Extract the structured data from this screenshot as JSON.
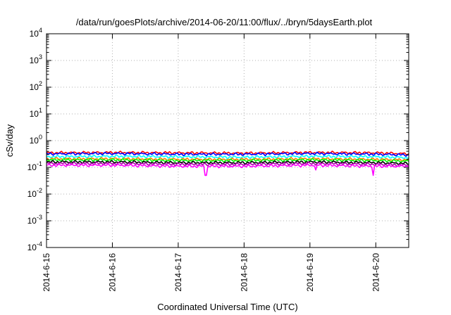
{
  "chart_data": {
    "type": "line",
    "title": "/data/run/goesPlots/archive/2014-06-20/11:00/flux/../bryn/5daysEarth.plot",
    "xlabel": "Coordinated Universal Time (UTC)",
    "ylabel": "cSv/day",
    "yscale": "log",
    "ylim": [
      0.0001,
      10000
    ],
    "y_ticks": [
      {
        "base": "10",
        "exp": "-4"
      },
      {
        "base": "10",
        "exp": "-3"
      },
      {
        "base": "10",
        "exp": "-2"
      },
      {
        "base": "10",
        "exp": "-1"
      },
      {
        "base": "10",
        "exp": "0"
      },
      {
        "base": "10",
        "exp": "1"
      },
      {
        "base": "10",
        "exp": "2"
      },
      {
        "base": "10",
        "exp": "3"
      },
      {
        "base": "10",
        "exp": "4"
      }
    ],
    "xlim": [
      "2014-06-15 00:00",
      "2014-06-20 12:00"
    ],
    "x_ticks": [
      "2014-6-15",
      "2014-6-16",
      "2014-6-17",
      "2014-6-18",
      "2014-6-19",
      "2014-6-20"
    ],
    "grid": true,
    "series": [
      {
        "color": "#ff0000",
        "base": 0.36,
        "x": [
          "2014-06-15 00:00",
          "2014-06-16 00:00",
          "2014-06-17 00:00",
          "2014-06-18 00:00",
          "2014-06-19 00:00",
          "2014-06-20 00:00",
          "2014-06-20 12:00"
        ],
        "y": [
          0.35,
          0.36,
          0.35,
          0.34,
          0.36,
          0.35,
          0.32
        ]
      },
      {
        "color": "#0000ff",
        "base": 0.32,
        "x": [
          "2014-06-15 00:00",
          "2014-06-16 00:00",
          "2014-06-17 00:00",
          "2014-06-18 00:00",
          "2014-06-19 00:00",
          "2014-06-20 00:00",
          "2014-06-20 12:00"
        ],
        "y": [
          0.32,
          0.33,
          0.31,
          0.31,
          0.33,
          0.31,
          0.29
        ]
      },
      {
        "color": "#00ffff",
        "base": 0.25,
        "x": [
          "2014-06-15 00:00",
          "2014-06-16 00:00",
          "2014-06-17 00:00",
          "2014-06-18 00:00",
          "2014-06-19 00:00",
          "2014-06-20 00:00",
          "2014-06-20 12:00"
        ],
        "y": [
          0.25,
          0.26,
          0.25,
          0.24,
          0.26,
          0.25,
          0.23
        ]
      },
      {
        "color": "#ff7f00",
        "base": 0.21,
        "x": [
          "2014-06-15 00:00",
          "2014-06-16 00:00",
          "2014-06-17 00:00",
          "2014-06-18 00:00",
          "2014-06-19 00:00",
          "2014-06-20 00:00",
          "2014-06-20 12:00"
        ],
        "y": [
          0.21,
          0.21,
          0.2,
          0.2,
          0.21,
          0.2,
          0.19
        ]
      },
      {
        "color": "#00ff00",
        "base": 0.19,
        "x": [
          "2014-06-15 00:00",
          "2014-06-16 00:00",
          "2014-06-17 00:00",
          "2014-06-18 00:00",
          "2014-06-19 00:00",
          "2014-06-20 00:00",
          "2014-06-20 12:00"
        ],
        "y": [
          0.19,
          0.19,
          0.18,
          0.18,
          0.19,
          0.18,
          0.17
        ]
      },
      {
        "color": "#000000",
        "base": 0.16,
        "x": [
          "2014-06-15 00:00",
          "2014-06-16 00:00",
          "2014-06-17 00:00",
          "2014-06-18 00:00",
          "2014-06-19 00:00",
          "2014-06-20 00:00",
          "2014-06-20 12:00"
        ],
        "y": [
          0.16,
          0.16,
          0.15,
          0.15,
          0.16,
          0.15,
          0.14
        ]
      },
      {
        "color": "#aa00aa",
        "base": 0.14,
        "x": [
          "2014-06-15 00:00",
          "2014-06-16 00:00",
          "2014-06-17 00:00",
          "2014-06-18 00:00",
          "2014-06-19 00:00",
          "2014-06-20 00:00",
          "2014-06-20 12:00"
        ],
        "y": [
          0.14,
          0.14,
          0.13,
          0.13,
          0.14,
          0.13,
          0.12
        ]
      },
      {
        "color": "#ff00ff",
        "base": 0.12,
        "x": [
          "2014-06-15 00:00",
          "2014-06-16 00:00",
          "2014-06-17 00:00",
          "2014-06-18 00:00",
          "2014-06-19 00:00",
          "2014-06-20 00:00",
          "2014-06-20 12:00"
        ],
        "y": [
          0.12,
          0.12,
          0.11,
          0.11,
          0.12,
          0.11,
          0.11
        ]
      }
    ],
    "dips": [
      {
        "color": "#ff00ff",
        "x": "2014-06-17 10:00",
        "y": 0.05
      },
      {
        "color": "#ff00ff",
        "x": "2014-06-19 23:00",
        "y": 0.05
      },
      {
        "color": "#ff00ff",
        "x": "2014-06-19 02:00",
        "y": 0.08
      }
    ]
  }
}
